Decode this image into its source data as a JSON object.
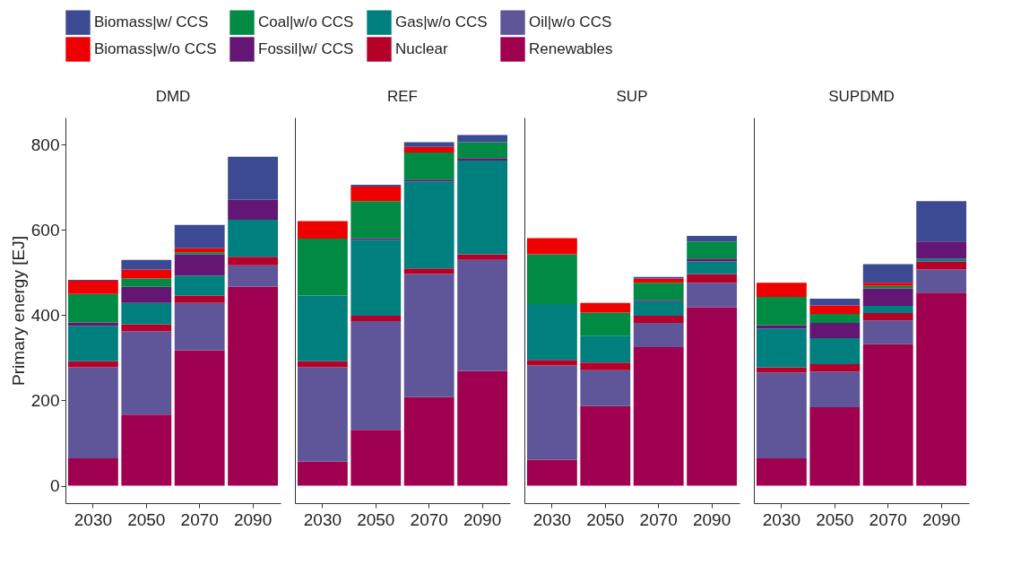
{
  "chart_data": [
    {
      "type": "bar",
      "title": "DMD",
      "ylabel": "Primary energy [EJ]",
      "categories": [
        "2030",
        "2050",
        "2070",
        "2090"
      ],
      "stacked": true,
      "legend": "top",
      "ylim": [
        -41,
        864
      ],
      "yticks": [
        0,
        200,
        400,
        600,
        800
      ],
      "series": [
        {
          "name": "Renewables",
          "color": "#a00050",
          "values": [
            64,
            167,
            318,
            467
          ]
        },
        {
          "name": "Oil|w/o CCS",
          "color": "#5f569a",
          "values": [
            214,
            195,
            111,
            50
          ]
        },
        {
          "name": "Nuclear",
          "color": "#b5002a",
          "values": [
            14,
            17,
            17,
            20
          ]
        },
        {
          "name": "Gas|w/o CCS",
          "color": "#007f7f",
          "values": [
            83,
            50,
            47,
            87
          ]
        },
        {
          "name": "Fossil|w/ CCS",
          "color": "#631673",
          "values": [
            8,
            38,
            50,
            47
          ]
        },
        {
          "name": "Coal|w/o CCS",
          "color": "#008a43",
          "values": [
            67,
            19,
            5,
            0
          ]
        },
        {
          "name": "Biomass|w/o CCS",
          "color": "#ee0000",
          "values": [
            31,
            21,
            9,
            0
          ]
        },
        {
          "name": "Biomass|w/ CCS",
          "color": "#3b4a93",
          "values": [
            2,
            23,
            55,
            101
          ]
        }
      ]
    },
    {
      "type": "bar",
      "title": "REF",
      "categories": [
        "2030",
        "2050",
        "2070",
        "2090"
      ],
      "stacked": true,
      "tick_labels": "x",
      "ylim": [
        -41,
        864
      ],
      "yticks": [
        0,
        200,
        400,
        600,
        800
      ],
      "series": [
        {
          "name": "Renewables",
          "color": "#a00050",
          "values": [
            57,
            131,
            208,
            269
          ]
        },
        {
          "name": "Oil|w/o CCS",
          "color": "#5f569a",
          "values": [
            221,
            255,
            289,
            261
          ]
        },
        {
          "name": "Nuclear",
          "color": "#b5002a",
          "values": [
            14,
            13,
            13,
            13
          ]
        },
        {
          "name": "Gas|w/o CCS",
          "color": "#007f7f",
          "values": [
            154,
            178,
            204,
            220
          ]
        },
        {
          "name": "Fossil|w/ CCS",
          "color": "#631673",
          "values": [
            0,
            4,
            4,
            6
          ]
        },
        {
          "name": "Coal|w/o CCS",
          "color": "#008a43",
          "values": [
            134,
            87,
            64,
            37
          ]
        },
        {
          "name": "Biomass|w/o CCS",
          "color": "#ee0000",
          "values": [
            41,
            34,
            13,
            0
          ]
        },
        {
          "name": "Biomass|w/ CCS",
          "color": "#3b4a93",
          "values": [
            0,
            4,
            11,
            17
          ]
        }
      ]
    },
    {
      "type": "bar",
      "title": "SUP",
      "categories": [
        "2030",
        "2050",
        "2070",
        "2090"
      ],
      "stacked": true,
      "tick_labels": "x",
      "ylim": [
        -41,
        864
      ],
      "yticks": [
        0,
        200,
        400,
        600,
        800
      ],
      "series": [
        {
          "name": "Renewables",
          "color": "#a00050",
          "values": [
            61,
            187,
            325,
            419
          ]
        },
        {
          "name": "Oil|w/o CCS",
          "color": "#5f569a",
          "values": [
            221,
            84,
            57,
            57
          ]
        },
        {
          "name": "Nuclear",
          "color": "#b5002a",
          "values": [
            13,
            18,
            17,
            21
          ]
        },
        {
          "name": "Gas|w/o CCS",
          "color": "#007f7f",
          "values": [
            131,
            63,
            34,
            29
          ]
        },
        {
          "name": "Fossil|w/ CCS",
          "color": "#631673",
          "values": [
            0,
            0,
            3,
            7
          ]
        },
        {
          "name": "Coal|w/o CCS",
          "color": "#008a43",
          "values": [
            117,
            54,
            40,
            40
          ]
        },
        {
          "name": "Biomass|w/o CCS",
          "color": "#ee0000",
          "values": [
            38,
            23,
            10,
            0
          ]
        },
        {
          "name": "Biomass|w/ CCS",
          "color": "#3b4a93",
          "values": [
            0,
            0,
            4,
            13
          ]
        }
      ]
    },
    {
      "type": "bar",
      "title": "SUPDMD",
      "categories": [
        "2030",
        "2050",
        "2070",
        "2090"
      ],
      "stacked": true,
      "tick_labels": "x",
      "ylim": [
        -41,
        864
      ],
      "yticks": [
        0,
        200,
        400,
        600,
        800
      ],
      "series": [
        {
          "name": "Renewables",
          "color": "#a00050",
          "values": [
            64,
            184,
            332,
            453
          ]
        },
        {
          "name": "Oil|w/o CCS",
          "color": "#5f569a",
          "values": [
            201,
            84,
            56,
            54
          ]
        },
        {
          "name": "Nuclear",
          "color": "#b5002a",
          "values": [
            13,
            17,
            17,
            19
          ]
        },
        {
          "name": "Gas|w/o CCS",
          "color": "#007f7f",
          "values": [
            91,
            61,
            17,
            7
          ]
        },
        {
          "name": "Fossil|w/ CCS",
          "color": "#631673",
          "values": [
            7,
            36,
            41,
            40
          ]
        },
        {
          "name": "Coal|w/o CCS",
          "color": "#008a43",
          "values": [
            67,
            21,
            6,
            0
          ]
        },
        {
          "name": "Biomass|w/o CCS",
          "color": "#ee0000",
          "values": [
            33,
            20,
            7,
            0
          ]
        },
        {
          "name": "Biomass|w/ CCS",
          "color": "#3b4a93",
          "values": [
            0,
            16,
            44,
            95
          ]
        }
      ]
    }
  ]
}
